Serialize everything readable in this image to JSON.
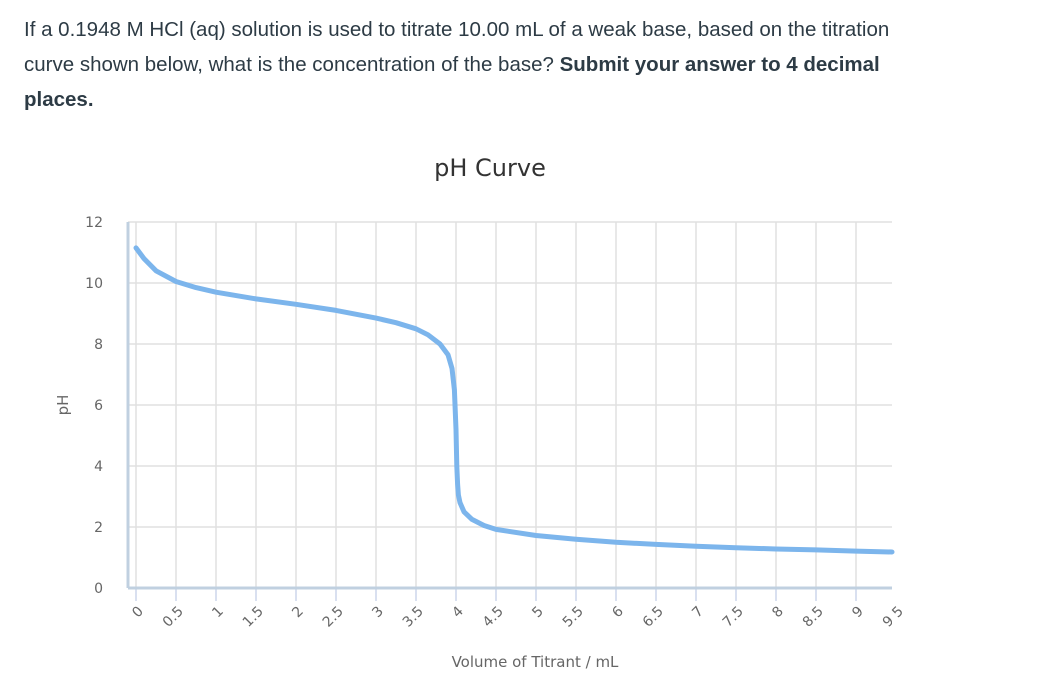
{
  "question": {
    "part1": "If a  0.1948 M HCl (aq) solution is used to titrate 10.00 mL of a weak base, based on the titration curve shown below, what is the concentration of the base? ",
    "part2_bold": "Submit your answer to 4 decimal places."
  },
  "chart_data": {
    "type": "line",
    "title": "pH Curve",
    "xlabel": "Volume of Titrant / mL",
    "ylabel": "pH",
    "xlim": [
      0,
      9.5
    ],
    "ylim": [
      0,
      12
    ],
    "grid": true,
    "legend": "none",
    "x_ticks": [
      "0",
      "0.5",
      "1",
      "1.5",
      "2",
      "2.5",
      "3",
      "3.5",
      "4",
      "4.5",
      "5",
      "5.5",
      "6",
      "6.5",
      "7",
      "7.5",
      "8",
      "8.5",
      "9",
      "9.5"
    ],
    "y_ticks": [
      "0",
      "2",
      "4",
      "6",
      "8",
      "10",
      "12"
    ],
    "line_color": "#7cb5ec",
    "series": [
      {
        "name": "pH",
        "x": [
          0,
          0.1,
          0.25,
          0.5,
          0.75,
          1,
          1.5,
          2,
          2.5,
          3,
          3.25,
          3.5,
          3.65,
          3.8,
          3.9,
          3.95,
          3.98,
          4.0,
          4.01,
          4.02,
          4.03,
          4.05,
          4.1,
          4.2,
          4.35,
          4.5,
          5,
          5.5,
          6,
          6.5,
          7,
          7.5,
          8,
          8.5,
          9,
          9.5
        ],
        "y": [
          11.15,
          10.8,
          10.4,
          10.05,
          9.85,
          9.7,
          9.48,
          9.3,
          9.1,
          8.85,
          8.7,
          8.5,
          8.3,
          8.0,
          7.65,
          7.2,
          6.5,
          5.2,
          4.0,
          3.4,
          3.05,
          2.8,
          2.5,
          2.25,
          2.05,
          1.92,
          1.72,
          1.6,
          1.5,
          1.43,
          1.37,
          1.32,
          1.28,
          1.25,
          1.21,
          1.18
        ]
      }
    ]
  }
}
